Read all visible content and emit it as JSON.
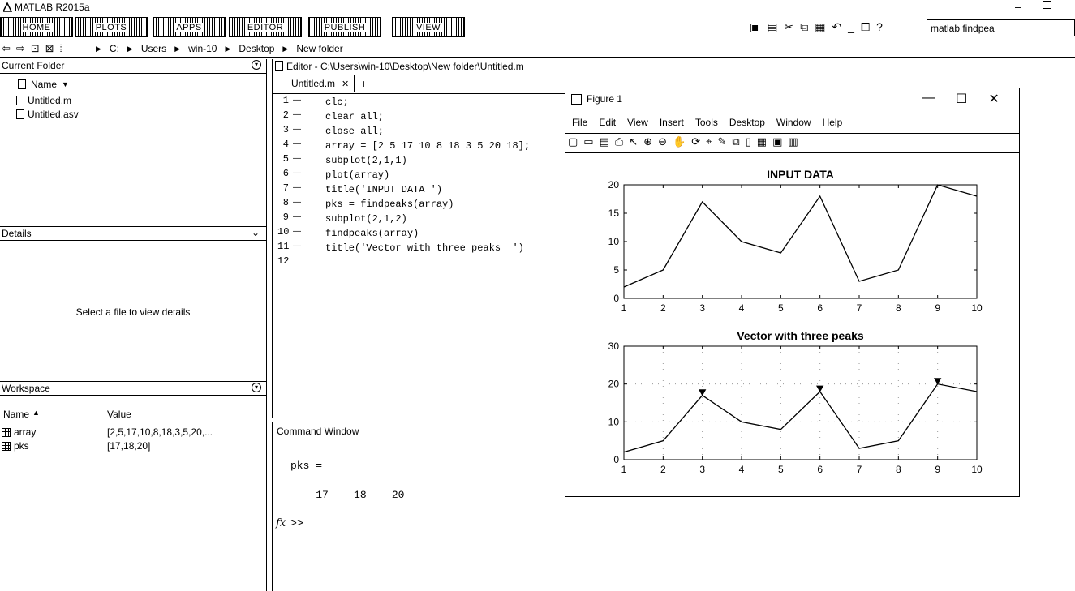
{
  "app": {
    "title": "MATLAB R2015a"
  },
  "tabs": [
    {
      "label": "HOME"
    },
    {
      "label": "PLOTS"
    },
    {
      "label": "APPS"
    },
    {
      "label": "EDITOR"
    },
    {
      "label": "PUBLISH"
    },
    {
      "label": "VIEW"
    }
  ],
  "search": {
    "value": "matlab findpea"
  },
  "path": [
    "C:",
    "Users",
    "win-10",
    "Desktop",
    "New folder"
  ],
  "current_folder": {
    "title": "Current Folder",
    "column_name": "Name",
    "files": [
      {
        "name": "Untitled.m"
      },
      {
        "name": "Untitled.asv"
      }
    ]
  },
  "details": {
    "title": "Details",
    "empty_text": "Select a file to view details"
  },
  "workspace": {
    "title": "Workspace",
    "col_name": "Name",
    "col_value": "Value",
    "vars": [
      {
        "name": "array",
        "value": "[2,5,17,10,8,18,3,5,20,..."
      },
      {
        "name": "pks",
        "value": "[17,18,20]"
      }
    ]
  },
  "editor": {
    "title": "Editor - C:\\Users\\win-10\\Desktop\\New folder\\Untitled.m",
    "tab_label": "Untitled.m",
    "lines": [
      {
        "n": "1",
        "code": "clc;"
      },
      {
        "n": "2",
        "code": "clear all;"
      },
      {
        "n": "3",
        "code": "close all;"
      },
      {
        "n": "4",
        "code": "array = [2 5 17 10 8 18 3 5 20 18];"
      },
      {
        "n": "5",
        "code": "subplot(2,1,1)"
      },
      {
        "n": "6",
        "code": "plot(array)"
      },
      {
        "n": "7",
        "code": "title('INPUT DATA ')"
      },
      {
        "n": "8",
        "code": "pks = findpeaks(array)"
      },
      {
        "n": "9",
        "code": "subplot(2,1,2)"
      },
      {
        "n": "10",
        "code": "findpeaks(array)"
      },
      {
        "n": "11",
        "code": "title('Vector with three peaks  ')"
      },
      {
        "n": "12",
        "code": ""
      }
    ]
  },
  "command_window": {
    "title": "Command Window",
    "output_var": "pks =",
    "output_values": "17    18    20",
    "prompt": ">>",
    "fx_label": "fx"
  },
  "figure": {
    "title": "Figure 1",
    "menu": [
      "File",
      "Edit",
      "View",
      "Insert",
      "Tools",
      "Desktop",
      "Window",
      "Help"
    ]
  },
  "chart_data": [
    {
      "type": "line",
      "title": "INPUT DATA",
      "x": [
        1,
        2,
        3,
        4,
        5,
        6,
        7,
        8,
        9,
        10
      ],
      "y": [
        2,
        5,
        17,
        10,
        8,
        18,
        3,
        5,
        20,
        18
      ],
      "xlim": [
        1,
        10
      ],
      "ylim": [
        0,
        20
      ],
      "xticks": [
        1,
        2,
        3,
        4,
        5,
        6,
        7,
        8,
        9,
        10
      ],
      "yticks": [
        0,
        5,
        10,
        15,
        20
      ],
      "grid": false
    },
    {
      "type": "line",
      "title": "Vector with three peaks",
      "x": [
        1,
        2,
        3,
        4,
        5,
        6,
        7,
        8,
        9,
        10
      ],
      "y": [
        2,
        5,
        17,
        10,
        8,
        18,
        3,
        5,
        20,
        18
      ],
      "peaks": [
        {
          "x": 3,
          "y": 17
        },
        {
          "x": 6,
          "y": 18
        },
        {
          "x": 9,
          "y": 20
        }
      ],
      "xlim": [
        1,
        10
      ],
      "ylim": [
        0,
        30
      ],
      "xticks": [
        1,
        2,
        3,
        4,
        5,
        6,
        7,
        8,
        9,
        10
      ],
      "yticks": [
        0,
        10,
        20,
        30
      ],
      "grid": true
    }
  ]
}
